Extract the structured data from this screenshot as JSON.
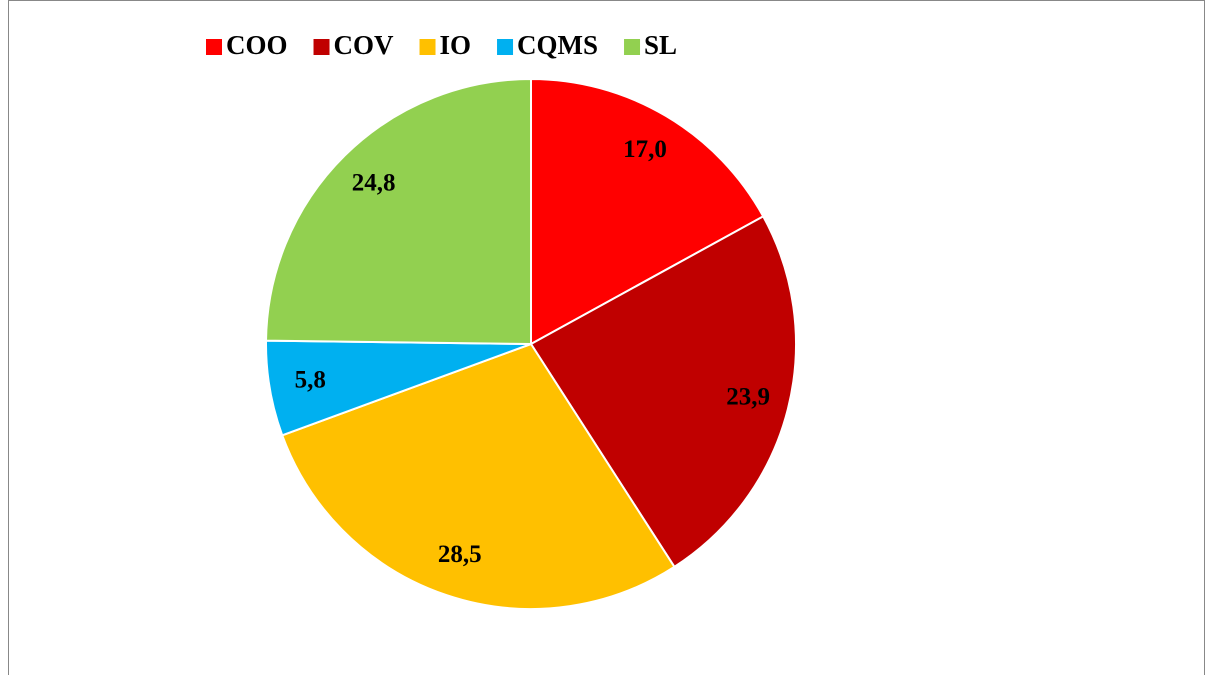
{
  "chart_data": {
    "type": "pie",
    "categories": [
      "COO",
      "COV",
      "IO",
      "CQMS",
      "SL"
    ],
    "values": [
      17.0,
      23.9,
      28.5,
      5.8,
      24.8
    ],
    "value_labels": [
      "17,0",
      "23,9",
      "28,5",
      "5,8",
      "24,8"
    ],
    "colors": [
      "#ff0000",
      "#c00000",
      "#ffc000",
      "#00b0f0",
      "#92d050"
    ],
    "legend": "top"
  }
}
